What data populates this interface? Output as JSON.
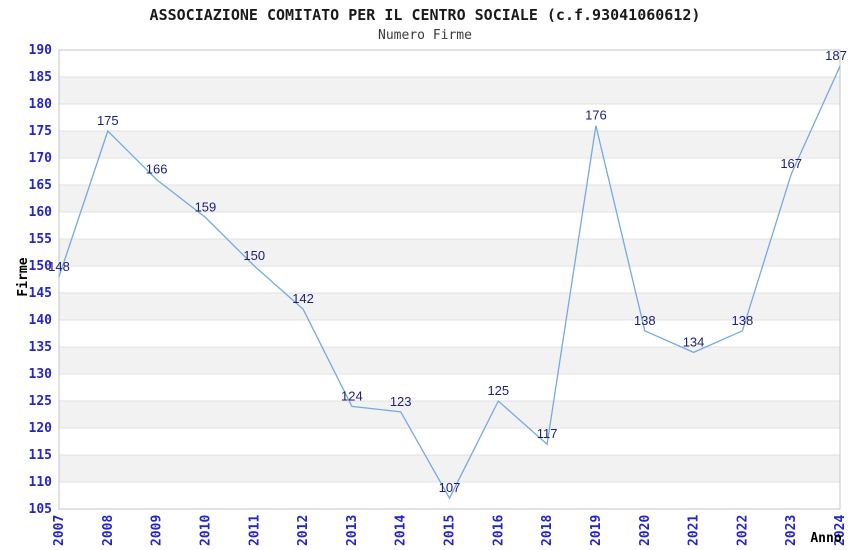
{
  "chart_data": {
    "type": "line",
    "title": "ASSOCIAZIONE COMITATO PER IL CENTRO SOCIALE (c.f.93041060612)",
    "subtitle": "Numero Firme",
    "xlabel": "Anno",
    "ylabel": "Firme",
    "categories": [
      "2007",
      "2008",
      "2009",
      "2010",
      "2011",
      "2012",
      "2013",
      "2014",
      "2015",
      "2016",
      "2018",
      "2019",
      "2020",
      "2021",
      "2022",
      "2023",
      "2024"
    ],
    "values": [
      148,
      175,
      166,
      159,
      150,
      142,
      124,
      123,
      107,
      125,
      117,
      176,
      138,
      134,
      138,
      167,
      187
    ],
    "ylim": [
      105,
      190
    ],
    "ytick_step": 5,
    "yticks": [
      105,
      110,
      115,
      120,
      125,
      130,
      135,
      140,
      145,
      150,
      155,
      160,
      165,
      170,
      175,
      180,
      185,
      190
    ],
    "grid": true,
    "legend": "none",
    "layout_hints": {
      "striped_bands": true,
      "x_tick_rotation_deg": -90,
      "data_labels_shown": true
    },
    "colors": {
      "line": "#76a9e3",
      "tick_label": "#2424cc",
      "data_label": "#1d1d7c",
      "stripe": "#f2f2f2",
      "gridline": "#e2e2e2",
      "border": "#c4c4c4",
      "title": "#1a1a1a",
      "subtitle": "#3a3a3a",
      "axis_title": "#000000",
      "background": "#ffffff"
    }
  }
}
